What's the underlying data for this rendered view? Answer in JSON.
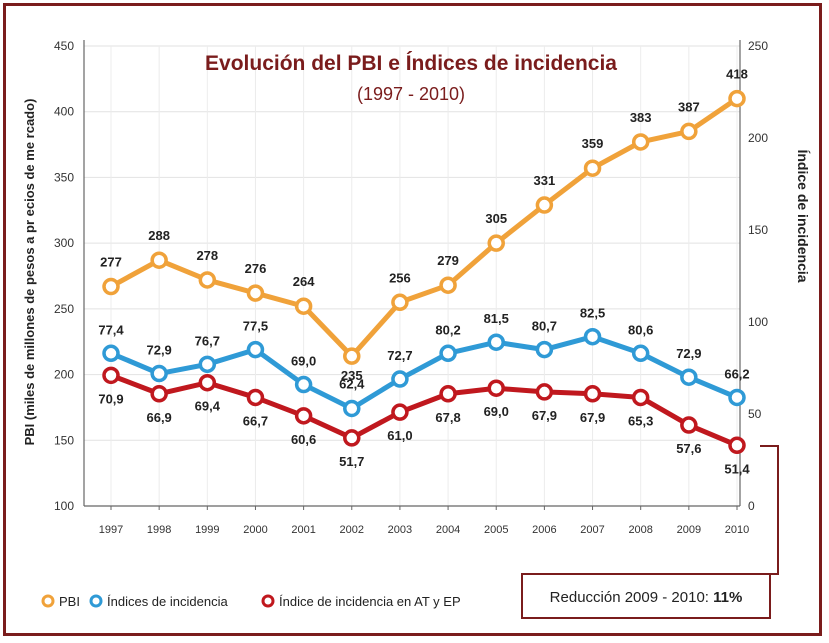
{
  "chart_data": {
    "type": "line",
    "title": "Evolución del PBI e Índices de incidencia",
    "subtitle": "(1997 - 2010)",
    "categories": [
      "1997",
      "1998",
      "1999",
      "2000",
      "2001",
      "2002",
      "2003",
      "2004",
      "2005",
      "2006",
      "2007",
      "2008",
      "2009",
      "2010"
    ],
    "y_left": {
      "label": "PBI (miles de millones de pesos a pr ecios de me rcado)",
      "range": [
        100,
        450
      ],
      "ticks": [
        "450",
        "400",
        "350",
        "300",
        "250",
        "200",
        "150",
        "100"
      ]
    },
    "y_right": {
      "label": "Índice de incidencia",
      "range": [
        0,
        250
      ],
      "ticks": [
        "250",
        "200",
        "150",
        "100",
        "50",
        "0"
      ]
    },
    "grid": true,
    "legend_position": "bottom-left",
    "series": [
      {
        "name": "PBI",
        "axis": "left",
        "color": "#f0a23a",
        "values": [
          277,
          288,
          278,
          276,
          264,
          235,
          256,
          279,
          305,
          331,
          359,
          383,
          387,
          418
        ],
        "plot_values": [
          267,
          287,
          272,
          262,
          252,
          214,
          255,
          268,
          300,
          329,
          357,
          377,
          385,
          410
        ],
        "labels": [
          "277",
          "288",
          "278",
          "276",
          "264",
          "235",
          "256",
          "279",
          "305",
          "331",
          "359",
          "383",
          "387",
          "418"
        ]
      },
      {
        "name": "Índices de incidencia",
        "axis": "right",
        "color": "#2f9ad6",
        "values": [
          77.4,
          72.9,
          76.7,
          77.5,
          69.0,
          62.4,
          72.7,
          80.2,
          81.5,
          80.7,
          82.5,
          80.6,
          72.9,
          66.2
        ],
        "plot_values": [
          83,
          72,
          77,
          85,
          66,
          53,
          69,
          83,
          89,
          85,
          92,
          83,
          70,
          59
        ],
        "labels": [
          "77,4",
          "72,9",
          "76,7",
          "77,5",
          "69,0",
          "62,4",
          "72,7",
          "80,2",
          "81,5",
          "80,7",
          "82,5",
          "80,6",
          "72,9",
          "66,2"
        ]
      },
      {
        "name": "Índice de incidencia en AT y EP",
        "axis": "right",
        "color": "#c0181e",
        "values": [
          70.9,
          66.9,
          69.4,
          66.7,
          60.6,
          51.7,
          61.0,
          67.8,
          69.0,
          67.9,
          67.9,
          65.3,
          57.6,
          51.4
        ],
        "plot_values": [
          71,
          61,
          67,
          59,
          49,
          37,
          51,
          61,
          64,
          62,
          61,
          59,
          44,
          33
        ],
        "labels": [
          "70,9",
          "66,9",
          "69,4",
          "66,7",
          "60,6",
          "51,7",
          "61,0",
          "67,8",
          "69,0",
          "67,9",
          "67,9",
          "65,3",
          "57,6",
          "51,4"
        ]
      }
    ],
    "annotation": {
      "text_prefix": "Reducción 2009 - 2010: ",
      "text_value": "11%"
    }
  }
}
